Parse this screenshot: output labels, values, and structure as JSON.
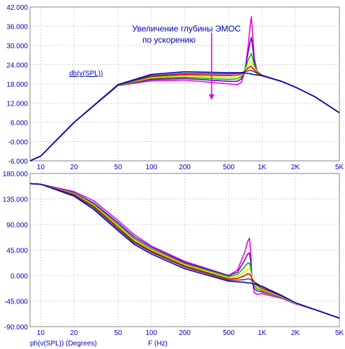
{
  "chart_data": [
    {
      "type": "line",
      "trace_label": "db(v(SPL))",
      "annotation": {
        "line1": "Увеличение глубины ЭМОС",
        "line2": "по ускорению"
      },
      "x_scale": "log",
      "xlim": [
        8,
        5000
      ],
      "ylim": [
        -6,
        42
      ],
      "x_ticks": [
        10,
        20,
        50,
        100,
        200,
        500,
        1000,
        2000,
        5000
      ],
      "x_tick_labels": [
        "10",
        "20",
        "50",
        "100",
        "200",
        "500",
        "1K",
        "2K",
        "5K"
      ],
      "y_ticks": [
        -6,
        0,
        6,
        12,
        18,
        24,
        30,
        36,
        42
      ],
      "y_tick_labels": [
        "-6.000",
        "-0.000",
        "6.000",
        "12.000",
        "18.000",
        "24.000",
        "30.000",
        "36.000",
        "42.000"
      ],
      "annotation_arrow": {
        "x": 350,
        "y_from": 34,
        "y_to": 13
      },
      "series": [
        {
          "color": "#e800e8",
          "x": [
            8,
            10,
            20,
            50,
            100,
            200,
            500,
            600,
            650,
            700,
            750,
            780,
            800,
            820,
            850,
            900,
            1000,
            1500,
            2000,
            3000,
            5000
          ],
          "y": [
            -6,
            -4.5,
            6,
            17.5,
            19,
            19.2,
            18,
            17.8,
            18.5,
            22,
            30,
            36,
            39,
            34,
            26,
            22,
            20.5,
            18.8,
            17,
            14,
            9
          ]
        },
        {
          "color": "#6a00c8",
          "x": [
            8,
            10,
            20,
            50,
            100,
            200,
            500,
            600,
            650,
            700,
            750,
            780,
            800,
            820,
            850,
            900,
            1000,
            1500,
            2000,
            3000,
            5000
          ],
          "y": [
            -6,
            -4.5,
            6,
            17.6,
            19.4,
            19.7,
            18.8,
            18.8,
            19.6,
            22.5,
            28,
            31,
            32.5,
            30,
            25,
            22,
            20.6,
            18.8,
            17,
            14,
            9
          ]
        },
        {
          "color": "#00c000",
          "x": [
            8,
            10,
            20,
            50,
            100,
            200,
            500,
            600,
            650,
            700,
            750,
            780,
            800,
            820,
            850,
            900,
            1000,
            1500,
            2000,
            3000,
            5000
          ],
          "y": [
            -6,
            -4.5,
            6,
            17.6,
            19.7,
            20.1,
            19.4,
            19.6,
            20.3,
            22.5,
            25.5,
            26.8,
            27.5,
            26,
            24,
            22,
            20.7,
            18.8,
            17,
            14,
            9
          ]
        },
        {
          "color": "#e8e800",
          "x": [
            8,
            10,
            20,
            50,
            100,
            200,
            500,
            600,
            650,
            700,
            750,
            780,
            800,
            820,
            850,
            900,
            1000,
            1500,
            2000,
            3000,
            5000
          ],
          "y": [
            -6,
            -4.5,
            6,
            17.7,
            20,
            20.5,
            20,
            20.2,
            20.8,
            22.3,
            24,
            24.8,
            25,
            24.2,
            23,
            21.8,
            20.7,
            18.8,
            17,
            14,
            9
          ]
        },
        {
          "color": "#e80000",
          "x": [
            8,
            10,
            20,
            50,
            100,
            200,
            500,
            600,
            650,
            700,
            750,
            780,
            800,
            820,
            850,
            900,
            1000,
            1500,
            2000,
            3000,
            5000
          ],
          "y": [
            -6,
            -4.5,
            6,
            17.7,
            20.3,
            20.9,
            20.6,
            20.8,
            21.2,
            22,
            23,
            23.4,
            23.5,
            23,
            22.4,
            21.6,
            20.7,
            18.8,
            17,
            14,
            9
          ]
        },
        {
          "color": "#4a4a4a",
          "x": [
            8,
            10,
            20,
            50,
            100,
            200,
            500,
            600,
            650,
            700,
            750,
            780,
            800,
            820,
            850,
            900,
            1000,
            1500,
            2000,
            3000,
            5000
          ],
          "y": [
            -6,
            -4.5,
            6,
            17.8,
            20.6,
            21.3,
            21.1,
            21.3,
            21.5,
            21.8,
            22.1,
            22.2,
            22.2,
            22,
            21.8,
            21.3,
            20.7,
            18.8,
            17,
            14,
            9
          ]
        },
        {
          "color": "#0000c8",
          "x": [
            8,
            10,
            20,
            50,
            100,
            200,
            500,
            600,
            650,
            700,
            750,
            780,
            800,
            820,
            850,
            900,
            1000,
            1500,
            2000,
            3000,
            5000
          ],
          "y": [
            -6,
            -4.5,
            6,
            17.8,
            21,
            21.8,
            21.5,
            21.5,
            21.5,
            21.4,
            21.3,
            21.2,
            21.1,
            21,
            20.9,
            20.8,
            20.6,
            18.8,
            17,
            14,
            9
          ]
        }
      ]
    },
    {
      "type": "line",
      "trace_label": "ph(v(SPL)) (Degrees)",
      "xlabel": "F (Hz)",
      "x_scale": "log",
      "xlim": [
        8,
        5000
      ],
      "ylim": [
        -90,
        180
      ],
      "x_ticks": [
        10,
        20,
        50,
        100,
        200,
        500,
        1000,
        2000,
        5000
      ],
      "x_tick_labels": [
        "10",
        "20",
        "50",
        "100",
        "200",
        "500",
        "1K",
        "2K",
        "5K"
      ],
      "y_ticks": [
        -90,
        -45,
        0,
        45,
        90,
        135,
        180
      ],
      "y_tick_labels": [
        "-90.000",
        "-45.000",
        "0.000",
        "45.000",
        "90.000",
        "135.000",
        "180.000"
      ],
      "series": [
        {
          "color": "#e800e8",
          "x": [
            8,
            10,
            20,
            30,
            50,
            70,
            100,
            200,
            500,
            600,
            700,
            740,
            770,
            790,
            810,
            850,
            900,
            1000,
            1500,
            2000,
            3000,
            5000
          ],
          "y": [
            162,
            161,
            148,
            132,
            97,
            72,
            52,
            25,
            0,
            10,
            42,
            60,
            66,
            40,
            -5,
            -30,
            -33,
            -32,
            -40,
            -50,
            -60,
            -75
          ]
        },
        {
          "color": "#6a00c8",
          "x": [
            8,
            10,
            20,
            30,
            50,
            70,
            100,
            200,
            500,
            600,
            700,
            740,
            770,
            790,
            810,
            850,
            900,
            1000,
            1500,
            2000,
            3000,
            5000
          ],
          "y": [
            162,
            161,
            146,
            128,
            93,
            68,
            50,
            23,
            0,
            6,
            28,
            38,
            40,
            25,
            -5,
            -23,
            -27,
            -29,
            -38,
            -49,
            -60,
            -75
          ]
        },
        {
          "color": "#00c000",
          "x": [
            8,
            10,
            20,
            30,
            50,
            70,
            100,
            200,
            500,
            600,
            700,
            740,
            770,
            790,
            810,
            850,
            900,
            1000,
            1500,
            2000,
            3000,
            5000
          ],
          "y": [
            162,
            161,
            145,
            126,
            90,
            65,
            47,
            21,
            -2,
            2,
            16,
            22,
            22,
            14,
            -4,
            -18,
            -23,
            -27,
            -38,
            -49,
            -60,
            -75
          ]
        },
        {
          "color": "#e8e800",
          "x": [
            8,
            10,
            20,
            30,
            50,
            70,
            100,
            200,
            500,
            600,
            700,
            740,
            770,
            790,
            810,
            850,
            900,
            1000,
            1500,
            2000,
            3000,
            5000
          ],
          "y": [
            162,
            161,
            144,
            124,
            87,
            62,
            45,
            19,
            -4,
            -2,
            7,
            12,
            12,
            7,
            -4,
            -14,
            -20,
            -25,
            -37,
            -49,
            -60,
            -75
          ]
        },
        {
          "color": "#e80000",
          "x": [
            8,
            10,
            20,
            30,
            50,
            70,
            100,
            200,
            500,
            600,
            700,
            740,
            770,
            790,
            810,
            850,
            900,
            1000,
            1500,
            2000,
            3000,
            5000
          ],
          "y": [
            162,
            161,
            143,
            122,
            85,
            60,
            43,
            17,
            -6,
            -5,
            0,
            3,
            3,
            0,
            -5,
            -11,
            -17,
            -23,
            -36,
            -48,
            -60,
            -75
          ]
        },
        {
          "color": "#4a4a4a",
          "x": [
            8,
            10,
            20,
            30,
            50,
            70,
            100,
            200,
            500,
            600,
            700,
            740,
            770,
            790,
            810,
            850,
            900,
            1000,
            1500,
            2000,
            3000,
            5000
          ],
          "y": [
            162,
            161,
            142,
            120,
            82,
            58,
            41,
            15,
            -8,
            -8,
            -7,
            -6,
            -6,
            -7,
            -9,
            -11,
            -14,
            -20,
            -36,
            -48,
            -60,
            -75
          ]
        },
        {
          "color": "#0000c8",
          "x": [
            8,
            10,
            20,
            30,
            50,
            70,
            100,
            200,
            500,
            600,
            700,
            740,
            770,
            790,
            810,
            850,
            900,
            1000,
            1500,
            2000,
            3000,
            5000
          ],
          "y": [
            162,
            161,
            140,
            117,
            79,
            55,
            38,
            12,
            -10,
            -11,
            -12,
            -13,
            -13,
            -13,
            -14,
            -15,
            -16,
            -19,
            -35,
            -48,
            -60,
            -75
          ]
        }
      ]
    }
  ]
}
